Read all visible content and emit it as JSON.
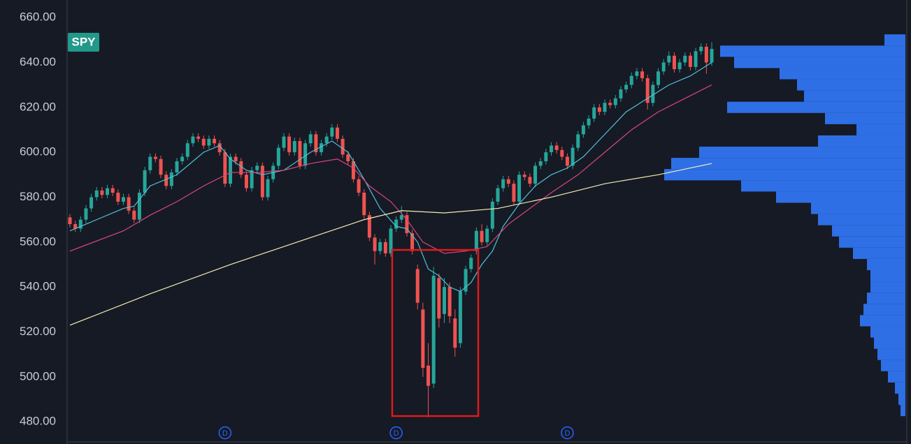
{
  "chart_data": {
    "type": "candlestick",
    "symbol": "SPY",
    "ylim": [
      470.1,
      667.8
    ],
    "yticks": [
      {
        "value": 480,
        "label": "480.00"
      },
      {
        "value": 500,
        "label": "500.00"
      },
      {
        "value": 520,
        "label": "520.00"
      },
      {
        "value": 540,
        "label": "540.00"
      },
      {
        "value": 560,
        "label": "560.00"
      },
      {
        "value": 580,
        "label": "580.00"
      },
      {
        "value": 600,
        "label": "600.00"
      },
      {
        "value": 620,
        "label": "620.00"
      },
      {
        "value": 640,
        "label": "640.00"
      },
      {
        "value": 660,
        "label": "660.00"
      }
    ],
    "grid": false,
    "up_color": "#26a69a",
    "down_color": "#ef5350",
    "ohlc": [
      [
        571,
        572.5,
        566.5,
        568
      ],
      [
        568,
        569.5,
        564.5,
        566
      ],
      [
        566,
        571.5,
        564.5,
        570
      ],
      [
        570,
        576.5,
        568.5,
        575
      ],
      [
        575,
        581.5,
        573.5,
        580
      ],
      [
        580,
        584.5,
        578.5,
        583
      ],
      [
        583,
        584.5,
        579.5,
        581
      ],
      [
        581,
        585.5,
        579.5,
        584
      ],
      [
        584,
        585.5,
        580.5,
        582
      ],
      [
        582,
        583.5,
        576.5,
        578
      ],
      [
        578,
        581.5,
        576.5,
        580
      ],
      [
        580,
        581.5,
        572.5,
        574
      ],
      [
        574,
        575.5,
        568.5,
        570
      ],
      [
        570,
        583.5,
        568.5,
        582
      ],
      [
        582,
        593.5,
        580.5,
        592
      ],
      [
        592,
        599.5,
        590.5,
        598
      ],
      [
        598,
        599.5,
        595.5,
        597
      ],
      [
        597,
        598.5,
        588.5,
        590
      ],
      [
        590,
        591.5,
        583.5,
        585
      ],
      [
        585,
        592.5,
        583.5,
        591
      ],
      [
        591,
        597.5,
        589.5,
        596
      ],
      [
        596,
        599.5,
        594.5,
        598
      ],
      [
        598,
        605.5,
        596.5,
        604
      ],
      [
        604,
        608.5,
        602.5,
        607
      ],
      [
        607,
        608.5,
        604.5,
        606
      ],
      [
        606,
        607.5,
        601.5,
        603
      ],
      [
        603,
        607.5,
        601.5,
        606
      ],
      [
        606,
        607.5,
        602.5,
        604
      ],
      [
        604,
        605.5,
        598.5,
        600
      ],
      [
        600,
        601.5,
        584.5,
        586
      ],
      [
        586,
        599.5,
        584.5,
        598
      ],
      [
        598,
        599.5,
        594.5,
        596
      ],
      [
        596,
        597.5,
        588.5,
        590
      ],
      [
        590,
        591.5,
        582.5,
        584
      ],
      [
        584,
        593.5,
        582.5,
        592
      ],
      [
        592,
        595.5,
        590.5,
        594
      ],
      [
        594,
        595.5,
        578.5,
        580
      ],
      [
        580,
        589.5,
        578.5,
        588
      ],
      [
        588,
        595.5,
        586.5,
        594
      ],
      [
        594,
        603.5,
        592.5,
        602
      ],
      [
        602,
        608.5,
        600.5,
        607
      ],
      [
        607,
        608.5,
        598.5,
        600
      ],
      [
        600,
        606.5,
        598.5,
        605
      ],
      [
        605,
        606.5,
        592.5,
        594
      ],
      [
        594,
        605.5,
        592.5,
        604
      ],
      [
        604,
        609.5,
        602.5,
        608
      ],
      [
        608,
        609.5,
        598.5,
        600
      ],
      [
        600,
        605.5,
        598.5,
        604
      ],
      [
        604,
        608.5,
        602.5,
        607
      ],
      [
        607,
        612.5,
        605.5,
        611
      ],
      [
        611,
        612.5,
        604.5,
        606
      ],
      [
        606,
        607.5,
        597.5,
        599
      ],
      [
        599,
        600.5,
        594.5,
        596
      ],
      [
        596,
        597.5,
        586.5,
        588
      ],
      [
        588,
        589.5,
        580.5,
        582
      ],
      [
        582,
        583.5,
        570.5,
        572
      ],
      [
        572,
        573.5,
        560.5,
        562
      ],
      [
        562,
        563.5,
        550,
        556
      ],
      [
        556,
        561.5,
        554.5,
        560
      ],
      [
        560,
        561.5,
        553.5,
        555
      ],
      [
        555,
        567.5,
        553.5,
        566
      ],
      [
        566,
        571.5,
        564.5,
        570
      ],
      [
        570,
        576,
        568.5,
        572
      ],
      [
        572,
        573.5,
        562.5,
        564
      ],
      [
        564,
        565.5,
        554.5,
        556
      ],
      [
        548,
        550,
        530,
        533
      ],
      [
        530,
        533,
        500,
        504
      ],
      [
        505,
        515,
        482,
        496
      ],
      [
        497,
        549,
        495,
        545
      ],
      [
        544,
        546,
        522,
        526
      ],
      [
        528,
        544,
        524,
        540
      ],
      [
        540,
        542,
        524,
        527
      ],
      [
        526,
        530,
        509,
        513
      ],
      [
        515,
        540,
        513,
        538
      ],
      [
        538,
        549.5,
        536.5,
        548
      ],
      [
        548,
        554.5,
        546.5,
        553
      ],
      [
        556,
        566.5,
        554.5,
        565
      ],
      [
        565,
        568,
        558.5,
        560
      ],
      [
        560,
        567.5,
        558.5,
        566
      ],
      [
        566,
        579.5,
        564.5,
        578
      ],
      [
        578,
        585.5,
        576.5,
        584
      ],
      [
        584,
        589.5,
        582.5,
        588
      ],
      [
        588,
        589.5,
        584.5,
        586
      ],
      [
        586,
        587.5,
        576.5,
        578
      ],
      [
        578,
        591.5,
        576.5,
        590
      ],
      [
        590,
        591.5,
        587.5,
        589
      ],
      [
        589,
        590.5,
        584.5,
        586
      ],
      [
        586,
        595.5,
        584.5,
        594
      ],
      [
        594,
        597.5,
        592.5,
        596
      ],
      [
        596,
        601.5,
        594.5,
        600
      ],
      [
        600,
        604.5,
        598.5,
        603
      ],
      [
        603,
        604.5,
        599.5,
        601
      ],
      [
        601,
        602.5,
        596.5,
        598
      ],
      [
        598,
        599.5,
        592.5,
        594
      ],
      [
        594,
        603.5,
        592.5,
        602
      ],
      [
        602,
        609.5,
        600.5,
        608
      ],
      [
        608,
        613.5,
        606.5,
        612
      ],
      [
        612,
        616.5,
        610.5,
        615
      ],
      [
        615,
        621.5,
        613.5,
        620
      ],
      [
        620,
        621.5,
        616.5,
        618
      ],
      [
        618,
        623.5,
        616.5,
        622
      ],
      [
        622,
        623.5,
        619.5,
        621
      ],
      [
        621,
        625.5,
        619.5,
        624
      ],
      [
        624,
        629.5,
        622.5,
        628
      ],
      [
        628,
        631.5,
        626.5,
        630
      ],
      [
        630,
        635.5,
        628.5,
        634
      ],
      [
        634,
        637.5,
        632.5,
        636
      ],
      [
        636,
        637.5,
        631.5,
        633
      ],
      [
        633,
        634.5,
        619,
        622
      ],
      [
        622,
        631.5,
        620.5,
        630
      ],
      [
        630,
        637.5,
        628.5,
        636
      ],
      [
        636,
        641.5,
        634.5,
        640
      ],
      [
        640,
        645,
        638.5,
        643
      ],
      [
        643,
        644.5,
        635.5,
        637
      ],
      [
        637,
        641.5,
        635.5,
        640
      ],
      [
        640,
        644.5,
        638.5,
        643
      ],
      [
        643,
        644.5,
        636.5,
        638
      ],
      [
        638,
        646.5,
        636.5,
        645
      ],
      [
        645,
        648.5,
        643.5,
        647
      ],
      [
        647,
        648.5,
        635,
        640
      ],
      [
        640,
        649,
        638.5,
        646
      ]
    ],
    "lines": [
      {
        "color": "#4fc3d9",
        "x": [
          0,
          5,
          10,
          12,
          15,
          20,
          25,
          28,
          30,
          33,
          36,
          40,
          45,
          49,
          52,
          55,
          58,
          61,
          63,
          65,
          67,
          69,
          71,
          73,
          75,
          77,
          79,
          81,
          84,
          87,
          90,
          93,
          96,
          100,
          104,
          108,
          112,
          116,
          120
        ],
        "values": [
          565,
          570,
          575,
          576,
          585,
          590,
          600,
          603,
          597,
          592,
          590,
          592,
          600,
          605,
          600,
          588,
          575,
          567,
          566,
          560,
          548,
          545,
          540,
          538,
          542,
          550,
          556,
          567,
          577,
          585,
          590,
          593,
          598,
          608,
          618,
          624,
          630,
          634,
          640
        ]
      },
      {
        "color": "#d9467f",
        "x": [
          0,
          10,
          15,
          20,
          25,
          30,
          35,
          40,
          45,
          50,
          53,
          56,
          60,
          63,
          66,
          70,
          74,
          78,
          82,
          86,
          90,
          95,
          100,
          105,
          110,
          115,
          120
        ],
        "values": [
          556,
          565,
          572,
          578,
          585,
          591,
          591,
          592,
          595,
          597,
          593,
          585,
          578,
          570,
          560,
          555,
          556,
          558,
          568,
          575,
          582,
          590,
          600,
          610,
          618,
          624,
          630
        ]
      },
      {
        "color": "#f3ecb4",
        "x": [
          0,
          15,
          30,
          45,
          55,
          62,
          70,
          80,
          90,
          100,
          110,
          120
        ],
        "values": [
          523,
          537,
          550,
          562,
          570,
          574,
          573,
          575,
          580,
          586,
          590,
          595
        ]
      }
    ],
    "volume_profile": {
      "color": "#2e6fe6",
      "prices": [
        485,
        490,
        495,
        500,
        505,
        510,
        515,
        520,
        525,
        530,
        535,
        540,
        545,
        550,
        555,
        560,
        565,
        570,
        575,
        580,
        585,
        590,
        595,
        600,
        605,
        610,
        615,
        620,
        625,
        630,
        635,
        640,
        645,
        650
      ],
      "values": [
        7,
        10,
        15,
        25,
        35,
        40,
        45,
        50,
        65,
        60,
        55,
        50,
        50,
        55,
        75,
        95,
        105,
        125,
        135,
        185,
        235,
        345,
        335,
        295,
        125,
        70,
        115,
        255,
        145,
        155,
        180,
        245,
        265,
        30
      ]
    },
    "events": [
      {
        "label": "D",
        "index": 29
      },
      {
        "label": "D",
        "index": 61
      },
      {
        "label": "D",
        "index": 93
      }
    ]
  }
}
